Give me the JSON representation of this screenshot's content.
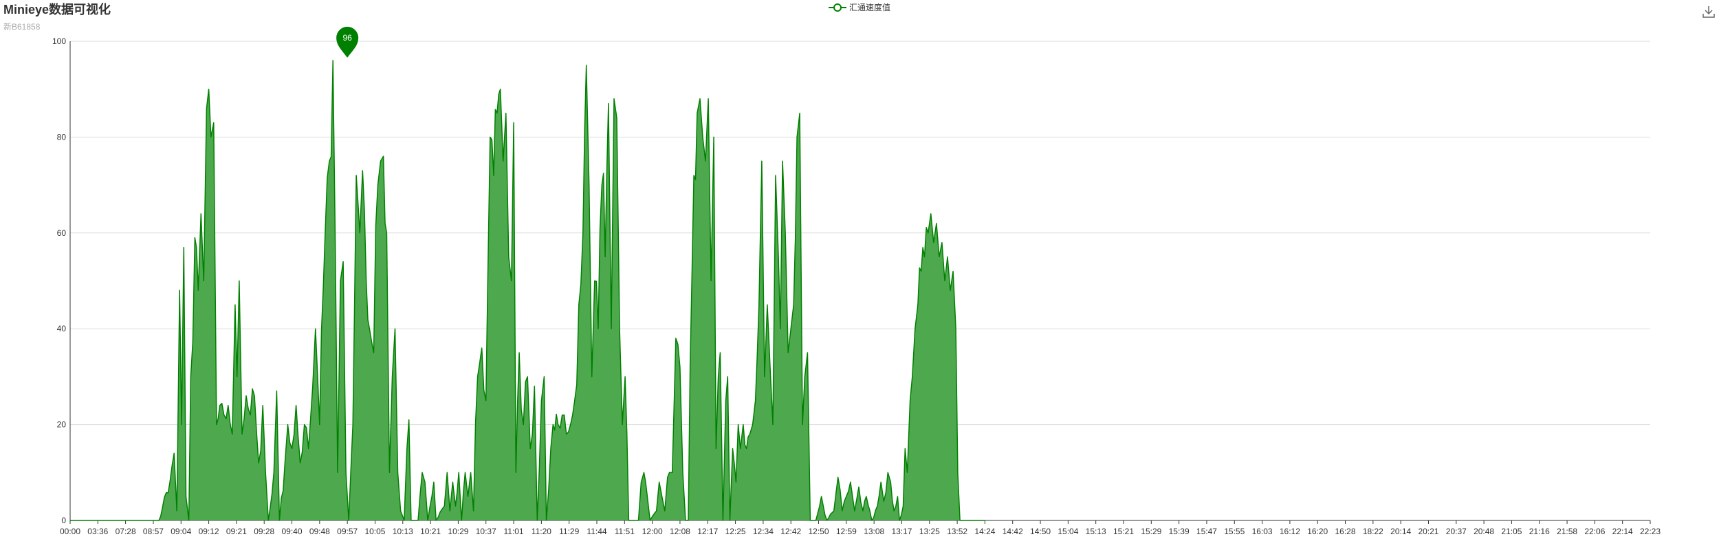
{
  "header": {
    "title": "Minieye数据可视化",
    "subtitle": "新B61858"
  },
  "legend": {
    "label": "汇通速度值",
    "color": "#008000"
  },
  "toolbar": {
    "download_icon": "download-icon"
  },
  "colors": {
    "line": "#008000",
    "area": "#4ea94e",
    "grid": "#dddddd",
    "axis": "#333333"
  },
  "chart_data": {
    "type": "area",
    "title": "Minieye数据可视化",
    "subtitle": "新B61858",
    "series": [
      {
        "name": "汇通速度值"
      }
    ],
    "ylim": [
      0,
      100
    ],
    "yticks": [
      "0",
      "20",
      "40",
      "60",
      "80",
      "100"
    ],
    "xticks": [
      "00:00",
      "03:36",
      "07:28",
      "08:57",
      "09:04",
      "09:12",
      "09:21",
      "09:28",
      "09:40",
      "09:48",
      "09:57",
      "10:05",
      "10:13",
      "10:21",
      "10:29",
      "10:37",
      "11:01",
      "11:20",
      "11:29",
      "11:44",
      "11:51",
      "12:00",
      "12:08",
      "12:17",
      "12:25",
      "12:34",
      "12:42",
      "12:50",
      "12:59",
      "13:08",
      "13:17",
      "13:25",
      "13:52",
      "14:24",
      "14:42",
      "14:50",
      "15:04",
      "15:13",
      "15:21",
      "15:29",
      "15:39",
      "15:47",
      "15:55",
      "16:03",
      "16:12",
      "16:20",
      "16:28",
      "18:22",
      "20:14",
      "20:21",
      "20:37",
      "20:48",
      "21:05",
      "21:16",
      "21:58",
      "22:06",
      "22:14",
      "22:23"
    ],
    "grid": true,
    "legend_position": "top-center",
    "markpoint": {
      "label": "96",
      "type": "max",
      "tick": "09:57"
    },
    "profile": [
      [
        0,
        0
      ],
      [
        2.5,
        0
      ],
      [
        3.2,
        0
      ],
      [
        3.6,
        8
      ],
      [
        3.75,
        14
      ],
      [
        3.85,
        2
      ],
      [
        3.95,
        48
      ],
      [
        4.02,
        20
      ],
      [
        4.1,
        57
      ],
      [
        4.18,
        5
      ],
      [
        4.28,
        0
      ],
      [
        4.35,
        30
      ],
      [
        4.5,
        59
      ],
      [
        4.62,
        48
      ],
      [
        4.72,
        64
      ],
      [
        4.82,
        50
      ],
      [
        4.92,
        86
      ],
      [
        5.0,
        90
      ],
      [
        5.08,
        80
      ],
      [
        5.18,
        83
      ],
      [
        5.28,
        20
      ],
      [
        5.4,
        24
      ],
      [
        5.55,
        22
      ],
      [
        5.7,
        24
      ],
      [
        5.85,
        18
      ],
      [
        5.95,
        45
      ],
      [
        6.02,
        30
      ],
      [
        6.1,
        50
      ],
      [
        6.2,
        18
      ],
      [
        6.35,
        26
      ],
      [
        6.5,
        22
      ],
      [
        6.65,
        26
      ],
      [
        6.8,
        12
      ],
      [
        6.95,
        24
      ],
      [
        7.05,
        10
      ],
      [
        7.15,
        0
      ],
      [
        7.35,
        10
      ],
      [
        7.45,
        27
      ],
      [
        7.55,
        0
      ],
      [
        7.75,
        12
      ],
      [
        7.85,
        20
      ],
      [
        8.0,
        15
      ],
      [
        8.15,
        24
      ],
      [
        8.3,
        12
      ],
      [
        8.45,
        20
      ],
      [
        8.6,
        15
      ],
      [
        8.75,
        28
      ],
      [
        8.85,
        40
      ],
      [
        9.0,
        20
      ],
      [
        9.2,
        60
      ],
      [
        9.35,
        75
      ],
      [
        9.48,
        96
      ],
      [
        9.56,
        60
      ],
      [
        9.65,
        10
      ],
      [
        9.75,
        50
      ],
      [
        9.85,
        54
      ],
      [
        9.95,
        10
      ],
      [
        10.05,
        0
      ],
      [
        10.2,
        20
      ],
      [
        10.32,
        72
      ],
      [
        10.45,
        60
      ],
      [
        10.55,
        73
      ],
      [
        10.68,
        50
      ],
      [
        10.8,
        40
      ],
      [
        10.95,
        35
      ],
      [
        11.1,
        70
      ],
      [
        11.2,
        75
      ],
      [
        11.3,
        76
      ],
      [
        11.42,
        60
      ],
      [
        11.52,
        10
      ],
      [
        11.62,
        30
      ],
      [
        11.72,
        40
      ],
      [
        11.82,
        10
      ],
      [
        11.92,
        2
      ],
      [
        12.05,
        0
      ],
      [
        12.15,
        15
      ],
      [
        12.22,
        21
      ],
      [
        12.3,
        0
      ],
      [
        12.55,
        0
      ],
      [
        12.7,
        10
      ],
      [
        12.8,
        8
      ],
      [
        12.9,
        0
      ],
      [
        13.05,
        5
      ],
      [
        13.12,
        8
      ],
      [
        13.2,
        0
      ],
      [
        13.5,
        3
      ],
      [
        13.6,
        10
      ],
      [
        13.7,
        2
      ],
      [
        13.8,
        8
      ],
      [
        13.9,
        3
      ],
      [
        14.02,
        10
      ],
      [
        14.12,
        0
      ],
      [
        14.25,
        10
      ],
      [
        14.35,
        5
      ],
      [
        14.45,
        10
      ],
      [
        14.55,
        2
      ],
      [
        14.7,
        30
      ],
      [
        14.85,
        36
      ],
      [
        15.0,
        25
      ],
      [
        15.15,
        80
      ],
      [
        15.28,
        72
      ],
      [
        15.4,
        85
      ],
      [
        15.52,
        90
      ],
      [
        15.62,
        75
      ],
      [
        15.72,
        85
      ],
      [
        15.82,
        55
      ],
      [
        15.92,
        50
      ],
      [
        16.0,
        83
      ],
      [
        16.08,
        10
      ],
      [
        16.2,
        35
      ],
      [
        16.35,
        20
      ],
      [
        16.5,
        30
      ],
      [
        16.6,
        15
      ],
      [
        16.75,
        28
      ],
      [
        16.85,
        0
      ],
      [
        17.0,
        25
      ],
      [
        17.1,
        30
      ],
      [
        17.18,
        0
      ],
      [
        17.42,
        20
      ],
      [
        17.6,
        20
      ],
      [
        17.75,
        22
      ],
      [
        17.9,
        18
      ],
      [
        18.05,
        20
      ],
      [
        18.2,
        25
      ],
      [
        18.35,
        45
      ],
      [
        18.5,
        60
      ],
      [
        18.62,
        95
      ],
      [
        18.72,
        70
      ],
      [
        18.82,
        30
      ],
      [
        18.92,
        50
      ],
      [
        19.05,
        40
      ],
      [
        19.18,
        70
      ],
      [
        19.3,
        55
      ],
      [
        19.42,
        87
      ],
      [
        19.52,
        40
      ],
      [
        19.62,
        88
      ],
      [
        19.72,
        84
      ],
      [
        19.82,
        40
      ],
      [
        19.92,
        20
      ],
      [
        20.02,
        30
      ],
      [
        20.15,
        0
      ],
      [
        20.5,
        0
      ],
      [
        20.6,
        8
      ],
      [
        20.7,
        10
      ],
      [
        20.82,
        5
      ],
      [
        20.92,
        0
      ],
      [
        21.15,
        2
      ],
      [
        21.25,
        8
      ],
      [
        21.35,
        5
      ],
      [
        21.45,
        2
      ],
      [
        21.55,
        9
      ],
      [
        21.62,
        10
      ],
      [
        21.72,
        10
      ],
      [
        21.85,
        38
      ],
      [
        22.0,
        32
      ],
      [
        22.1,
        10
      ],
      [
        22.2,
        0
      ],
      [
        22.3,
        0
      ],
      [
        22.5,
        72
      ],
      [
        22.62,
        85
      ],
      [
        22.72,
        88
      ],
      [
        22.82,
        80
      ],
      [
        22.92,
        75
      ],
      [
        23.02,
        88
      ],
      [
        23.12,
        50
      ],
      [
        23.22,
        80
      ],
      [
        23.3,
        15
      ],
      [
        23.38,
        30
      ],
      [
        23.45,
        35
      ],
      [
        23.55,
        0
      ],
      [
        23.65,
        25
      ],
      [
        23.72,
        30
      ],
      [
        23.8,
        0
      ],
      [
        23.9,
        15
      ],
      [
        24.02,
        8
      ],
      [
        24.1,
        20
      ],
      [
        24.18,
        15
      ],
      [
        24.28,
        20
      ],
      [
        24.4,
        15
      ],
      [
        24.52,
        18
      ],
      [
        24.62,
        20
      ],
      [
        24.72,
        25
      ],
      [
        24.85,
        45
      ],
      [
        24.95,
        75
      ],
      [
        25.05,
        30
      ],
      [
        25.15,
        45
      ],
      [
        25.25,
        32
      ],
      [
        25.35,
        20
      ],
      [
        25.45,
        72
      ],
      [
        25.55,
        55
      ],
      [
        25.62,
        40
      ],
      [
        25.7,
        75
      ],
      [
        25.8,
        60
      ],
      [
        25.9,
        35
      ],
      [
        26.0,
        40
      ],
      [
        26.1,
        45
      ],
      [
        26.22,
        80
      ],
      [
        26.32,
        85
      ],
      [
        26.42,
        20
      ],
      [
        26.5,
        30
      ],
      [
        26.6,
        35
      ],
      [
        26.7,
        0
      ],
      [
        26.9,
        0
      ],
      [
        27.1,
        5
      ],
      [
        27.3,
        0
      ],
      [
        27.55,
        2
      ],
      [
        27.7,
        9
      ],
      [
        27.85,
        2
      ],
      [
        28.0,
        5
      ],
      [
        28.15,
        8
      ],
      [
        28.3,
        2
      ],
      [
        28.45,
        7
      ],
      [
        28.6,
        2
      ],
      [
        28.72,
        5
      ],
      [
        28.85,
        2
      ],
      [
        28.92,
        0
      ],
      [
        29.12,
        3
      ],
      [
        29.25,
        8
      ],
      [
        29.35,
        4
      ],
      [
        29.5,
        10
      ],
      [
        29.6,
        8
      ],
      [
        29.72,
        2
      ],
      [
        29.85,
        5
      ],
      [
        29.92,
        0
      ],
      [
        30.05,
        3
      ],
      [
        30.12,
        15
      ],
      [
        30.2,
        10
      ],
      [
        30.3,
        25
      ],
      [
        30.38,
        30
      ],
      [
        30.48,
        40
      ],
      [
        30.58,
        45
      ],
      [
        30.7,
        52
      ],
      [
        30.82,
        55
      ],
      [
        30.95,
        60
      ],
      [
        31.05,
        64
      ],
      [
        31.15,
        58
      ],
      [
        31.25,
        62
      ],
      [
        31.35,
        55
      ],
      [
        31.45,
        58
      ],
      [
        31.55,
        50
      ],
      [
        31.65,
        55
      ],
      [
        31.75,
        48
      ],
      [
        31.85,
        52
      ],
      [
        31.95,
        40
      ],
      [
        32.02,
        10
      ],
      [
        32.1,
        0
      ],
      [
        33.0,
        0
      ]
    ]
  }
}
